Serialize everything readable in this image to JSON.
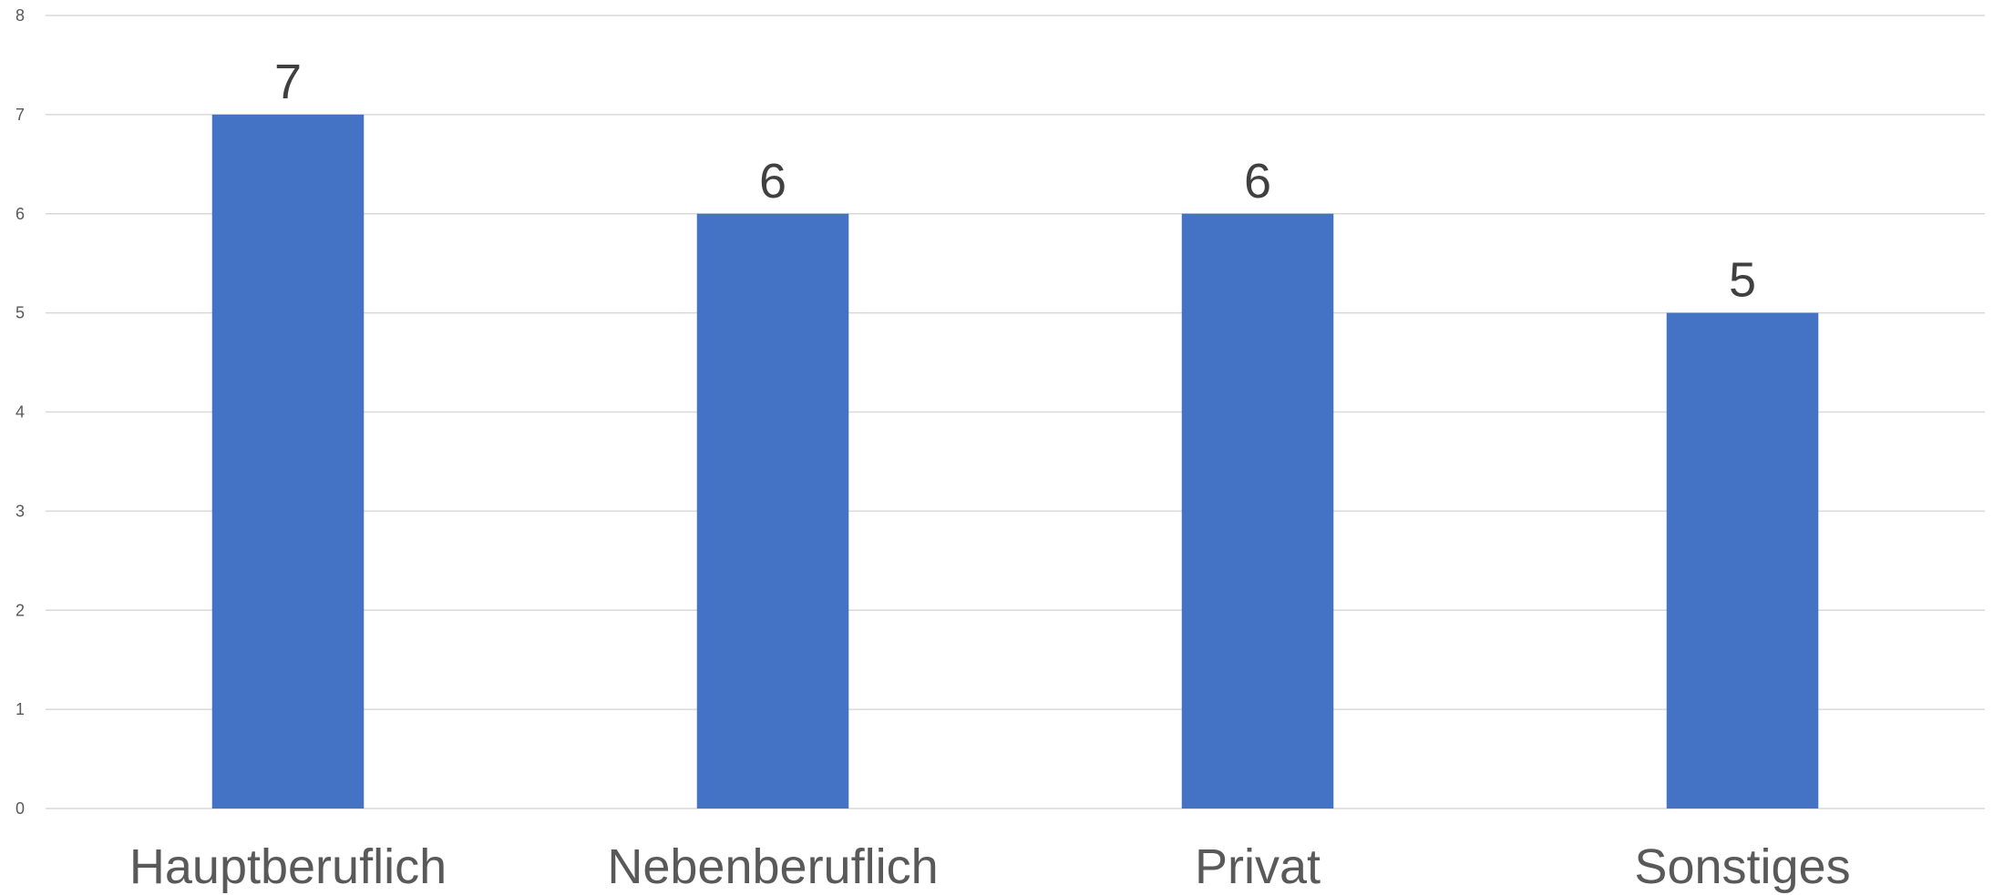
{
  "chart_data": {
    "type": "bar",
    "title": "",
    "xlabel": "",
    "ylabel": "",
    "categories": [
      "Hauptberuflich",
      "Nebenberuflich",
      "Privat",
      "Sonstiges"
    ],
    "values": [
      7,
      6,
      6,
      5
    ],
    "ylim": [
      0,
      8
    ],
    "yticks": [
      "0",
      "1",
      "2",
      "3",
      "4",
      "5",
      "6",
      "7",
      "8"
    ],
    "data_labels": [
      "7",
      "6",
      "6",
      "5"
    ],
    "grid": true,
    "legend": "none",
    "bar_color": "#4472C4"
  }
}
